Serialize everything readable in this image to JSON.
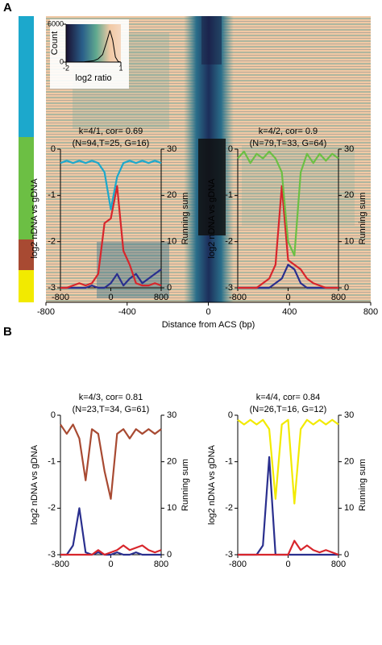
{
  "panel_labels": [
    "A",
    "B"
  ],
  "chart_data": [
    {
      "type": "heatmap",
      "xlim": [
        -800,
        800
      ],
      "xticks": [
        -800,
        -400,
        0,
        400,
        800
      ],
      "xlabel": "Distance from ACS (bp)"
    },
    {
      "type": "line",
      "xlabel": "log2 ratio",
      "ylabel": "Count",
      "x": [
        -2,
        -1.5,
        -1,
        -0.5,
        -0.25,
        0,
        0.2,
        0.4,
        0.55,
        0.7,
        0.85,
        1
      ],
      "series": [
        {
          "color": "#000000",
          "values": [
            0,
            0,
            50,
            200,
            500,
            1200,
            3000,
            5000,
            3500,
            800,
            100,
            0
          ]
        }
      ],
      "xlim": [
        -2,
        1
      ],
      "xticks": [
        -2,
        1
      ],
      "ylim": [
        0,
        6000
      ],
      "yticks": [
        0,
        6000
      ]
    },
    {
      "type": "line",
      "title": "k=4/1, cor= 0.69",
      "subtitle": "(N=94,T=25, G=16)",
      "ylabel": "log2 nDNA vs gDNA",
      "y2label": "Running sum",
      "x": [
        -800,
        -700,
        -600,
        -500,
        -400,
        -300,
        -200,
        -100,
        0,
        100,
        200,
        300,
        400,
        500,
        600,
        700,
        800
      ],
      "series": [
        {
          "color": "#1ca8cc",
          "values": [
            -0.3,
            -0.25,
            -0.3,
            -0.25,
            -0.3,
            -0.25,
            -0.3,
            -0.5,
            -1.3,
            -0.6,
            -0.3,
            -0.25,
            -0.3,
            -0.25,
            -0.3,
            -0.25,
            -0.3
          ]
        },
        {
          "color": "#d8262c",
          "axis": "y2",
          "values": [
            0,
            0,
            0.5,
            1,
            0.5,
            1,
            3,
            14,
            15,
            22,
            8,
            5,
            1,
            0.5,
            0.5,
            1,
            0.5
          ]
        },
        {
          "color": "#2a2f8e",
          "axis": "y2",
          "values": [
            0,
            0,
            0,
            0,
            0,
            0.5,
            0,
            0,
            1,
            3,
            0.5,
            2,
            3,
            1,
            2,
            3,
            4
          ]
        }
      ],
      "xlim": [
        -800,
        800
      ],
      "xticks": [
        -800,
        0,
        800
      ],
      "ylim": [
        -3,
        0
      ],
      "yticks": [
        -3,
        -2,
        -1,
        0
      ],
      "y2lim": [
        0,
        30
      ],
      "y2ticks": [
        0,
        10,
        20,
        30
      ]
    },
    {
      "type": "line",
      "title": "k=4/2, cor= 0.9",
      "subtitle": "(N=79,T=33, G=64)",
      "ylabel": "log2 nDNA vs gDNA",
      "y2label": "Running sum",
      "x": [
        -800,
        -700,
        -600,
        -500,
        -400,
        -300,
        -200,
        -100,
        0,
        100,
        200,
        300,
        400,
        500,
        600,
        700,
        800
      ],
      "series": [
        {
          "color": "#6cbf44",
          "values": [
            -0.2,
            -0.05,
            -0.3,
            -0.1,
            -0.2,
            -0.05,
            -0.2,
            -0.5,
            -2.0,
            -2.3,
            -0.5,
            -0.1,
            -0.3,
            -0.1,
            -0.25,
            -0.1,
            -0.2
          ]
        },
        {
          "color": "#d8262c",
          "axis": "y2",
          "values": [
            0,
            0,
            0,
            0,
            1,
            2,
            5,
            22,
            6,
            5,
            4,
            2,
            1,
            0.5,
            0,
            0,
            0
          ]
        },
        {
          "color": "#2a2f8e",
          "axis": "y2",
          "values": [
            0,
            0,
            0,
            0,
            0,
            0,
            1,
            2,
            5,
            4,
            1,
            0,
            0,
            0,
            0,
            0,
            0
          ]
        }
      ],
      "xlim": [
        -800,
        800
      ],
      "xticks": [
        -800,
        0,
        800
      ],
      "ylim": [
        -3,
        0
      ],
      "yticks": [
        -3,
        -2,
        -1,
        0
      ],
      "y2lim": [
        0,
        30
      ],
      "y2ticks": [
        0,
        10,
        20,
        30
      ]
    },
    {
      "type": "line",
      "title": "k=4/3, cor= 0.81",
      "subtitle": "(N=23,T=34, G=61)",
      "ylabel": "log2 nDNA vs gDNA",
      "y2label": "Running sum",
      "x": [
        -800,
        -700,
        -600,
        -500,
        -400,
        -300,
        -200,
        -100,
        0,
        100,
        200,
        300,
        400,
        500,
        600,
        700,
        800
      ],
      "series": [
        {
          "color": "#a84a32",
          "values": [
            -0.2,
            -0.4,
            -0.2,
            -0.5,
            -1.4,
            -0.3,
            -0.4,
            -1.2,
            -1.8,
            -0.4,
            -0.3,
            -0.5,
            -0.3,
            -0.4,
            -0.3,
            -0.4,
            -0.3
          ]
        },
        {
          "color": "#d8262c",
          "axis": "y2",
          "values": [
            0,
            0,
            0,
            0,
            0,
            0,
            1,
            0,
            0.5,
            1,
            2,
            1,
            1.5,
            2,
            1,
            0.5,
            1
          ]
        },
        {
          "color": "#2a2f8e",
          "axis": "y2",
          "values": [
            0,
            0,
            2,
            10,
            0.5,
            0,
            0.5,
            0,
            0,
            0.5,
            0,
            0,
            0.5,
            0,
            0,
            0,
            0
          ]
        }
      ],
      "xlim": [
        -800,
        800
      ],
      "xticks": [
        -800,
        0,
        800
      ],
      "ylim": [
        -3,
        0
      ],
      "yticks": [
        -3,
        -2,
        -1,
        0
      ],
      "y2lim": [
        0,
        30
      ],
      "y2ticks": [
        0,
        10,
        20,
        30
      ]
    },
    {
      "type": "line",
      "title": "k=4/4, cor= 0.84",
      "subtitle": "(N=26,T=16, G=12)",
      "ylabel": "log2 nDNA vs gDNA",
      "y2label": "Running sum",
      "x": [
        -800,
        -700,
        -600,
        -500,
        -400,
        -300,
        -200,
        -100,
        0,
        100,
        200,
        300,
        400,
        500,
        600,
        700,
        800
      ],
      "series": [
        {
          "color": "#f2ea00",
          "values": [
            -0.1,
            -0.2,
            -0.1,
            -0.2,
            -0.1,
            -0.3,
            -1.8,
            -0.2,
            -0.1,
            -1.9,
            -0.3,
            -0.1,
            -0.2,
            -0.1,
            -0.2,
            -0.1,
            -0.2
          ]
        },
        {
          "color": "#d8262c",
          "axis": "y2",
          "values": [
            0,
            0,
            0,
            0,
            0,
            0,
            0,
            0,
            0,
            3,
            1,
            2,
            1,
            0.5,
            1,
            0.5,
            0
          ]
        },
        {
          "color": "#2a2f8e",
          "axis": "y2",
          "values": [
            0,
            0,
            0,
            0,
            2,
            21,
            0,
            0,
            0,
            0,
            0,
            0,
            0,
            0,
            0,
            0,
            0
          ]
        }
      ],
      "xlim": [
        -800,
        800
      ],
      "xticks": [
        -800,
        0,
        800
      ],
      "ylim": [
        -3,
        0
      ],
      "yticks": [
        -3,
        -2,
        -1,
        0
      ],
      "y2lim": [
        0,
        30
      ],
      "y2ticks": [
        0,
        10,
        20,
        30
      ]
    }
  ]
}
